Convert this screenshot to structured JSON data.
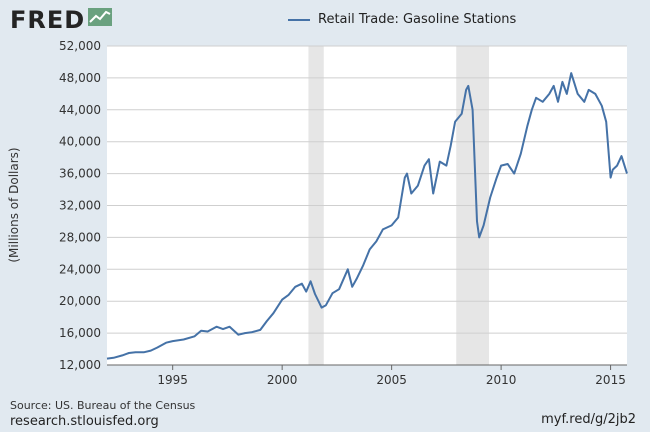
{
  "header": {
    "logo_text": "FRED",
    "logo_icon": "fred-chart-icon"
  },
  "colors": {
    "background": "#e1e9f0",
    "plot_background": "#ffffff",
    "series": "#4572a7",
    "recession": "#e6e6e6"
  },
  "footer": {
    "source": "Source: US. Bureau of the Census",
    "site": "research.stlouisfed.org",
    "shortlink": "myf.red/g/2jb2"
  },
  "chart_data": {
    "type": "line",
    "title": "",
    "xlabel": "",
    "ylabel": "(Millions of Dollars)",
    "xlim": [
      1992.0,
      2015.75
    ],
    "ylim": [
      12000,
      52000
    ],
    "yticks": [
      12000,
      16000,
      20000,
      24000,
      28000,
      32000,
      36000,
      40000,
      44000,
      48000,
      52000
    ],
    "ytick_labels": [
      "12,000",
      "16,000",
      "20,000",
      "24,000",
      "28,000",
      "32,000",
      "36,000",
      "40,000",
      "44,000",
      "48,000",
      "52,000"
    ],
    "xticks": [
      1995,
      2000,
      2005,
      2010,
      2015
    ],
    "xtick_labels": [
      "1995",
      "2000",
      "2005",
      "2010",
      "2015"
    ],
    "grid": true,
    "legend": "top-center",
    "recessions": [
      [
        2001.2,
        2001.9
      ],
      [
        2007.95,
        2009.45
      ]
    ],
    "series": [
      {
        "name": "Retail Trade: Gasoline Stations",
        "x": [
          1992.0,
          1992.3,
          1992.7,
          1993.0,
          1993.3,
          1993.7,
          1994.0,
          1994.3,
          1994.7,
          1995.0,
          1995.5,
          1996.0,
          1996.3,
          1996.6,
          1997.0,
          1997.3,
          1997.6,
          1998.0,
          1998.3,
          1998.6,
          1999.0,
          1999.3,
          1999.6,
          2000.0,
          2000.3,
          2000.6,
          2000.9,
          2001.1,
          2001.3,
          2001.5,
          2001.8,
          2002.0,
          2002.3,
          2002.6,
          2003.0,
          2003.2,
          2003.4,
          2003.7,
          2004.0,
          2004.3,
          2004.6,
          2005.0,
          2005.3,
          2005.6,
          2005.7,
          2005.9,
          2006.2,
          2006.5,
          2006.7,
          2006.9,
          2007.2,
          2007.5,
          2007.7,
          2007.9,
          2008.2,
          2008.4,
          2008.5,
          2008.7,
          2008.9,
          2009.0,
          2009.2,
          2009.5,
          2009.8,
          2010.0,
          2010.3,
          2010.6,
          2010.9,
          2011.2,
          2011.4,
          2011.6,
          2011.9,
          2012.2,
          2012.4,
          2012.6,
          2012.8,
          2013.0,
          2013.2,
          2013.5,
          2013.8,
          2014.0,
          2014.3,
          2014.6,
          2014.8,
          2015.0,
          2015.1,
          2015.3,
          2015.5,
          2015.75
        ],
        "values": [
          12800,
          12900,
          13200,
          13500,
          13600,
          13600,
          13800,
          14200,
          14800,
          15000,
          15200,
          15600,
          16300,
          16200,
          16800,
          16500,
          16800,
          15800,
          16000,
          16100,
          16400,
          17500,
          18500,
          20200,
          20800,
          21800,
          22200,
          21200,
          22500,
          20900,
          19200,
          19500,
          21000,
          21500,
          24000,
          21800,
          22800,
          24500,
          26500,
          27500,
          29000,
          29500,
          30500,
          35500,
          36000,
          33500,
          34500,
          37000,
          37800,
          33500,
          37500,
          37000,
          39500,
          42500,
          43500,
          46500,
          47000,
          44000,
          30000,
          28000,
          29500,
          33000,
          35500,
          37000,
          37200,
          36000,
          38500,
          42000,
          44000,
          45500,
          45000,
          46000,
          47000,
          45000,
          47500,
          46000,
          48600,
          46000,
          45000,
          46500,
          46000,
          44500,
          42500,
          35500,
          36500,
          37000,
          38200,
          36000
        ]
      }
    ]
  }
}
